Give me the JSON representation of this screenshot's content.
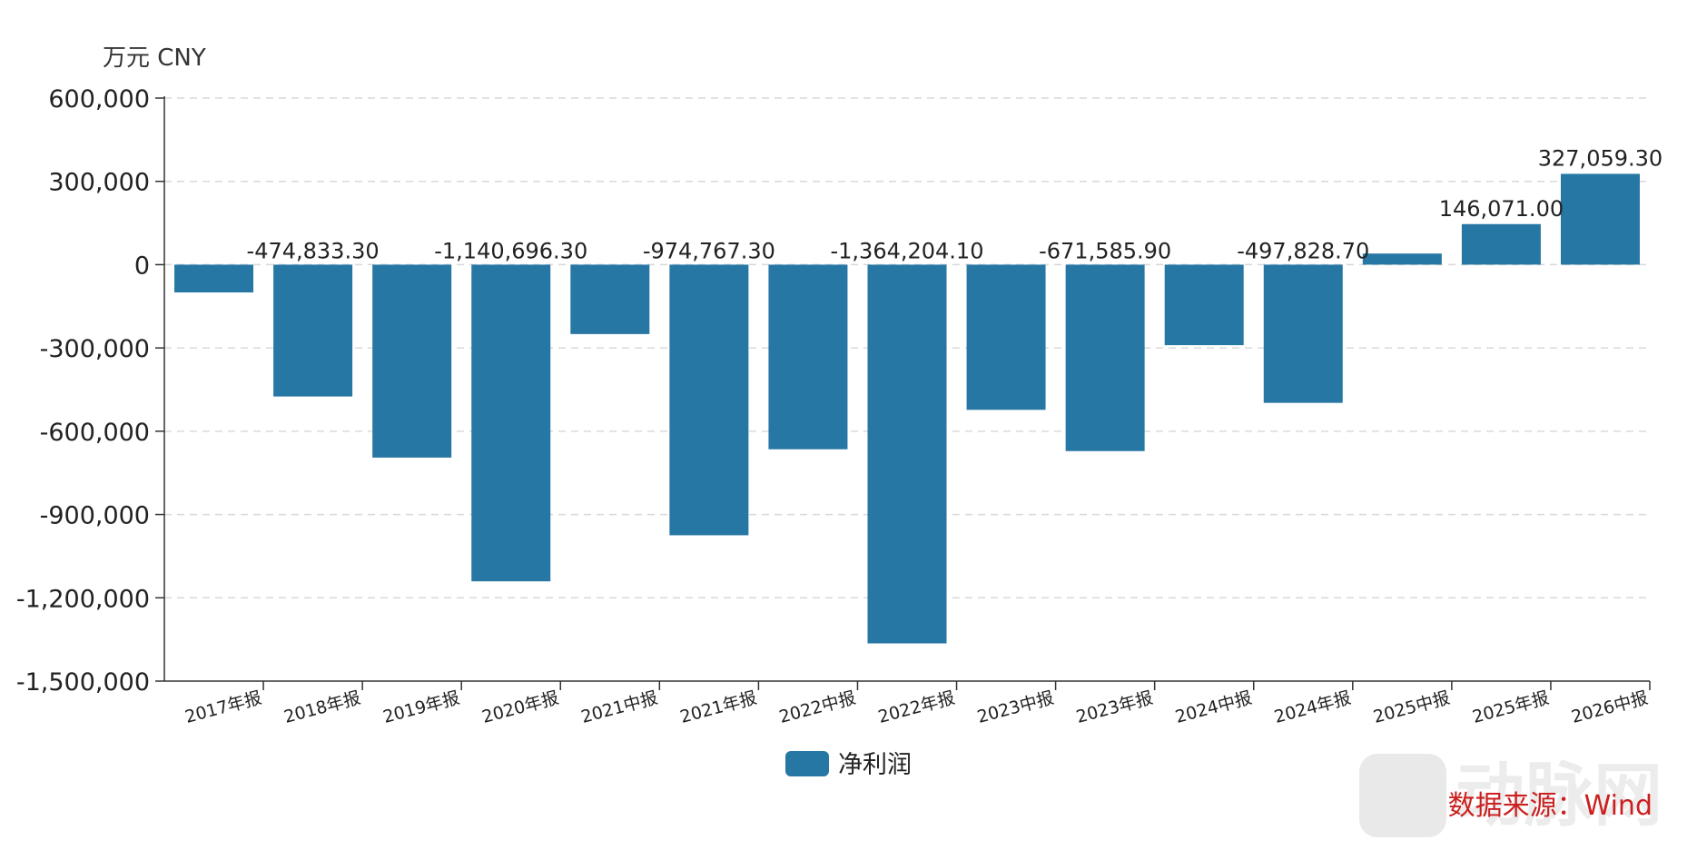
{
  "chart_data": {
    "type": "bar",
    "unit_label": "万元  CNY",
    "categories": [
      "2017年报",
      "2018年报",
      "2019年报",
      "2020年报",
      "2021中报",
      "2021年报",
      "2022中报",
      "2022年报",
      "2023中报",
      "2023年报",
      "2024中报",
      "2024年报",
      "2025中报",
      "2025年报",
      "2026中报"
    ],
    "series": [
      {
        "name": "净利润",
        "values": [
          -100000,
          -474833.3,
          -695000,
          -1140696.3,
          -250000,
          -974767.3,
          -665000,
          -1364204.1,
          -523000,
          -671585.9,
          -290000,
          -497828.7,
          40000,
          146071.0,
          327059.3
        ],
        "data_labels": [
          "",
          "-474,833.30",
          "",
          "-1,140,696.30",
          "",
          "-974,767.30",
          "",
          "-1,364,204.10",
          "",
          "-671,585.90",
          "",
          "-497,828.70",
          "",
          "146,071.00",
          "327,059.30"
        ]
      }
    ],
    "ylim": [
      -1500000,
      600000
    ],
    "yticks": [
      600000,
      300000,
      0,
      -300000,
      -600000,
      -900000,
      -1200000,
      -1500000
    ],
    "ytick_labels": [
      "600,000",
      "300,000",
      "0",
      "-300,000",
      "-600,000",
      "-900,000",
      "-1,200,000",
      "-1,500,000"
    ],
    "grid": true,
    "legend_position": "bottom-center",
    "bar_color": "#2777a4",
    "source_label": "数据来源：Wind",
    "source_color": "#cc1f1f"
  },
  "watermark": {
    "text": "动脉网"
  }
}
